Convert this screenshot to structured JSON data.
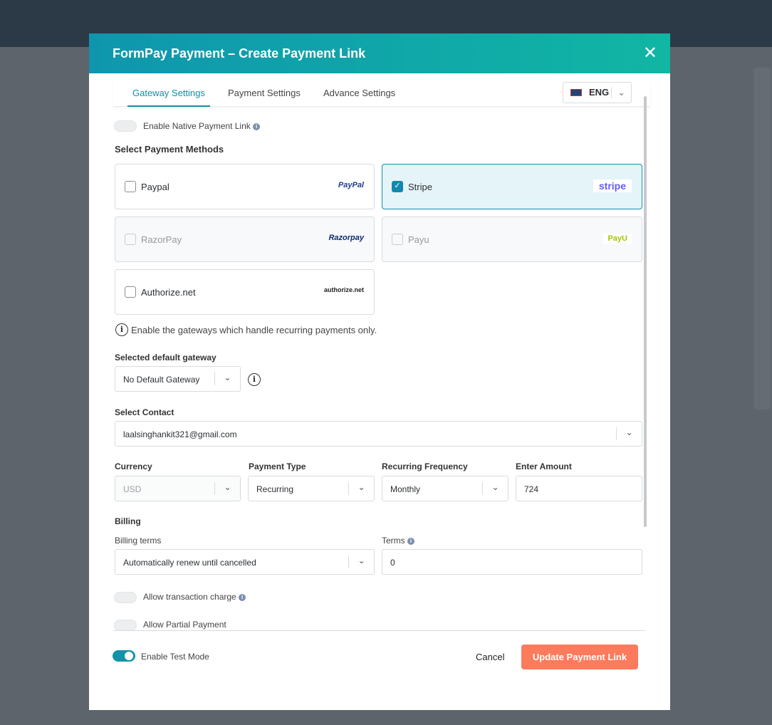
{
  "modal": {
    "title": "FormPay Payment – Create Payment Link",
    "close_icon": "close-icon"
  },
  "tabs": [
    "Gateway Settings",
    "Payment Settings",
    "Advance Settings"
  ],
  "language": {
    "flag": "uk-flag-icon",
    "value": "ENG"
  },
  "native_link": {
    "label": "Enable Native Payment Link",
    "enabled": false
  },
  "methods": {
    "title": "Select Payment Methods",
    "items": [
      {
        "name": "Paypal",
        "logo": "PayPal",
        "checked": false,
        "disabled": false
      },
      {
        "name": "Stripe",
        "logo": "stripe",
        "checked": true,
        "disabled": false
      },
      {
        "name": "RazorPay",
        "logo": "Razorpay",
        "checked": false,
        "disabled": true
      },
      {
        "name": "Payu",
        "logo": "PayU",
        "checked": false,
        "disabled": true
      },
      {
        "name": "Authorize.net",
        "logo": "authorize.net",
        "checked": false,
        "disabled": false
      }
    ]
  },
  "colors": {
    "accent": "#138ea8",
    "primary_button": "#fb7b5c",
    "stripe": "#635bff",
    "payu": "#a6c307"
  },
  "recurring_note": "Enable the gateways which handle recurring payments only.",
  "default_gateway": {
    "label": "Selected default gateway",
    "value": "No Default Gateway"
  },
  "contact": {
    "label": "Select Contact",
    "value": "laalsinghankit321@gmail.com"
  },
  "currency": {
    "label": "Currency",
    "value": "USD"
  },
  "payment_type": {
    "label": "Payment Type",
    "value": "Recurring"
  },
  "frequency": {
    "label": "Recurring Frequency",
    "value": "Monthly"
  },
  "amount": {
    "label": "Enter Amount",
    "value": "724"
  },
  "billing": {
    "title": "Billing",
    "terms_label": "Billing terms",
    "terms_value": "Automatically renew until cancelled",
    "count_label": "Terms",
    "count_value": "0"
  },
  "transaction_charge": {
    "label": "Allow transaction charge",
    "enabled": false
  },
  "partial_payment": {
    "label": "Allow Partial Payment",
    "enabled": false
  },
  "test_mode": {
    "label": "Enable Test Mode",
    "enabled": true
  },
  "footer": {
    "cancel": "Cancel",
    "submit": "Update Payment Link"
  }
}
